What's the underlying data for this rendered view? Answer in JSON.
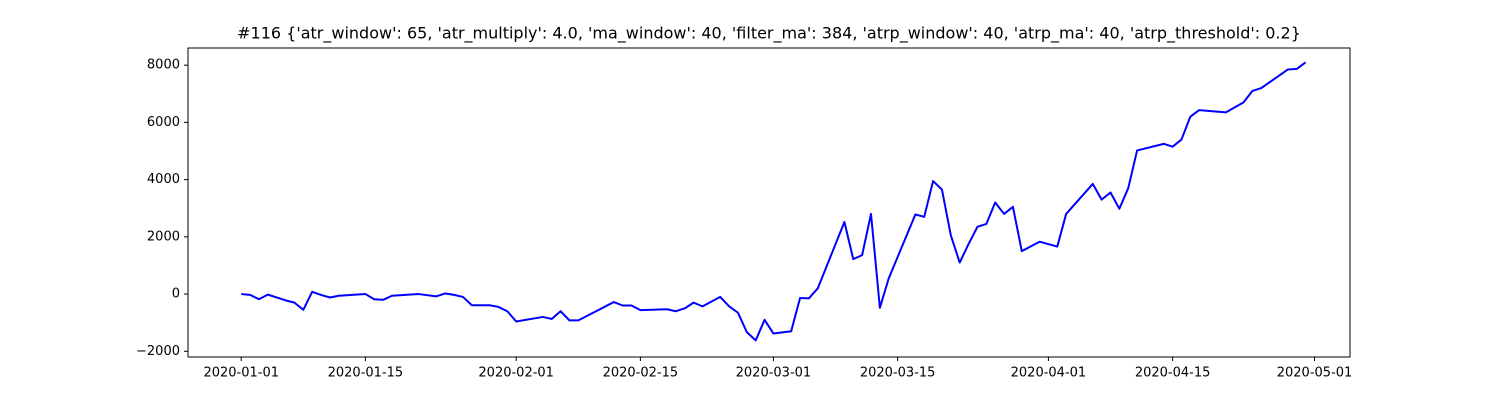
{
  "chart_data": {
    "type": "line",
    "title": "#116 {'atr_window': 65, 'atr_multiply': 4.0, 'ma_window': 40, 'filter_ma': 384, 'atrp_window': 40, 'atrp_ma': 40, 'atrp_threshold': 0.2}",
    "x": [
      "2020-01-01",
      "2020-01-02",
      "2020-01-03",
      "2020-01-04",
      "2020-01-06",
      "2020-01-07",
      "2020-01-08",
      "2020-01-09",
      "2020-01-10",
      "2020-01-11",
      "2020-01-12",
      "2020-01-15",
      "2020-01-16",
      "2020-01-17",
      "2020-01-18",
      "2020-01-21",
      "2020-01-23",
      "2020-01-24",
      "2020-01-25",
      "2020-01-26",
      "2020-01-27",
      "2020-01-29",
      "2020-01-30",
      "2020-01-31",
      "2020-02-01",
      "2020-02-04",
      "2020-02-05",
      "2020-02-06",
      "2020-02-07",
      "2020-02-08",
      "2020-02-10",
      "2020-02-12",
      "2020-02-13",
      "2020-02-14",
      "2020-02-15",
      "2020-02-18",
      "2020-02-19",
      "2020-02-20",
      "2020-02-21",
      "2020-02-22",
      "2020-02-24",
      "2020-02-25",
      "2020-02-26",
      "2020-02-27",
      "2020-02-28",
      "2020-02-29",
      "2020-03-01",
      "2020-03-03",
      "2020-03-04",
      "2020-03-05",
      "2020-03-06",
      "2020-03-09",
      "2020-03-10",
      "2020-03-11",
      "2020-03-12",
      "2020-03-13",
      "2020-03-14",
      "2020-03-17",
      "2020-03-18",
      "2020-03-19",
      "2020-03-20",
      "2020-03-21",
      "2020-03-22",
      "2020-03-23",
      "2020-03-24",
      "2020-03-25",
      "2020-03-26",
      "2020-03-27",
      "2020-03-28",
      "2020-03-29",
      "2020-03-31",
      "2020-04-02",
      "2020-04-03",
      "2020-04-06",
      "2020-04-07",
      "2020-04-08",
      "2020-04-09",
      "2020-04-10",
      "2020-04-11",
      "2020-04-14",
      "2020-04-15",
      "2020-04-16",
      "2020-04-17",
      "2020-04-18",
      "2020-04-21",
      "2020-04-23",
      "2020-04-24",
      "2020-04-25",
      "2020-04-28",
      "2020-04-29",
      "2020-04-30"
    ],
    "values": [
      0,
      -30,
      -180,
      -20,
      -220,
      -300,
      -550,
      80,
      -30,
      -120,
      -60,
      0,
      -180,
      -200,
      -60,
      0,
      -80,
      20,
      -30,
      -100,
      -390,
      -390,
      -450,
      -600,
      -960,
      -800,
      -870,
      -600,
      -920,
      -920,
      -600,
      -280,
      -400,
      -400,
      -560,
      -530,
      -600,
      -500,
      -300,
      -430,
      -100,
      -430,
      -650,
      -1330,
      -1620,
      -900,
      -1380,
      -1300,
      -140,
      -150,
      200,
      2520,
      1220,
      1360,
      2800,
      -480,
      550,
      2780,
      2700,
      3950,
      3650,
      2050,
      1100,
      1750,
      2350,
      2450,
      3200,
      2800,
      3050,
      1500,
      1830,
      1660,
      2800,
      3850,
      3300,
      3550,
      2980,
      3700,
      5020,
      5250,
      5150,
      5400,
      6200,
      6430,
      6350,
      6700,
      7100,
      7200,
      7850,
      7870,
      8100
    ],
    "color": "#0000ff",
    "xlim": [
      "2019-12-26",
      "2020-05-05"
    ],
    "xticks": [
      "2020-01-01",
      "2020-01-15",
      "2020-02-01",
      "2020-02-15",
      "2020-03-01",
      "2020-03-15",
      "2020-04-01",
      "2020-04-15",
      "2020-05-01"
    ],
    "ylim": [
      -2200,
      8600
    ],
    "yticks": [
      {
        "value": -2000,
        "label": "−2000"
      },
      0,
      2000,
      4000,
      6000,
      8000
    ]
  }
}
